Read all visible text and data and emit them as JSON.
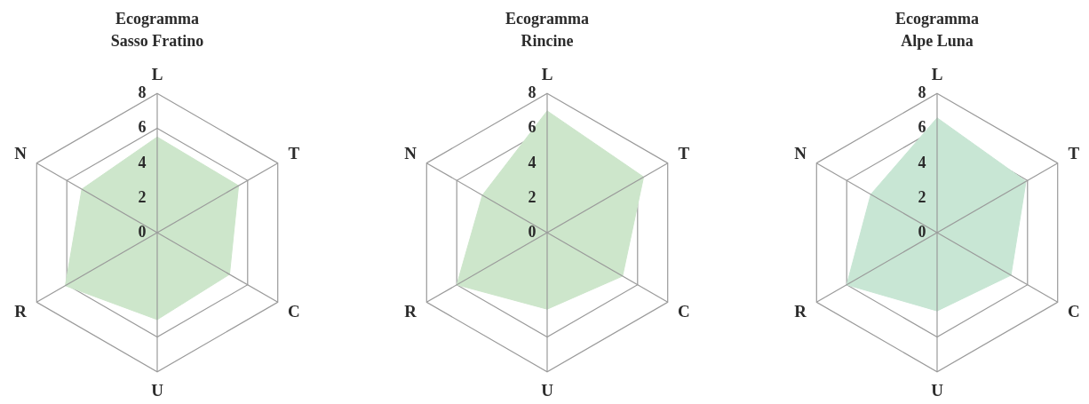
{
  "chart_data": [
    {
      "type": "radar",
      "title": "Ecogramma",
      "subtitle": "Sasso Fratino",
      "categories": [
        "L",
        "T",
        "C",
        "U",
        "R",
        "N"
      ],
      "series": [
        {
          "color": "#cde6cb",
          "values": [
            5.5,
            5.4,
            4.8,
            5.0,
            6.1,
            5.0
          ]
        }
      ],
      "ylim": [
        0,
        8
      ],
      "yticks": [
        0,
        2,
        4,
        6,
        8
      ],
      "grid": true
    },
    {
      "type": "radar",
      "title": "Ecogramma",
      "subtitle": "Rincine",
      "categories": [
        "L",
        "T",
        "C",
        "U",
        "R",
        "N"
      ],
      "series": [
        {
          "color": "#cde6cb",
          "values": [
            7.0,
            6.4,
            5.0,
            4.4,
            6.0,
            4.3
          ]
        }
      ],
      "ylim": [
        0,
        8
      ],
      "yticks": [
        0,
        2,
        4,
        6,
        8
      ],
      "grid": true
    },
    {
      "type": "radar",
      "title": "Ecogramma",
      "subtitle": "Alpe Luna",
      "categories": [
        "L",
        "T",
        "C",
        "U",
        "R",
        "N"
      ],
      "series": [
        {
          "color": "#c8e6d4",
          "values": [
            6.6,
            5.9,
            4.9,
            4.5,
            6.0,
            4.4
          ]
        }
      ],
      "ylim": [
        0,
        8
      ],
      "yticks": [
        0,
        2,
        4,
        6,
        8
      ],
      "grid": true
    }
  ]
}
